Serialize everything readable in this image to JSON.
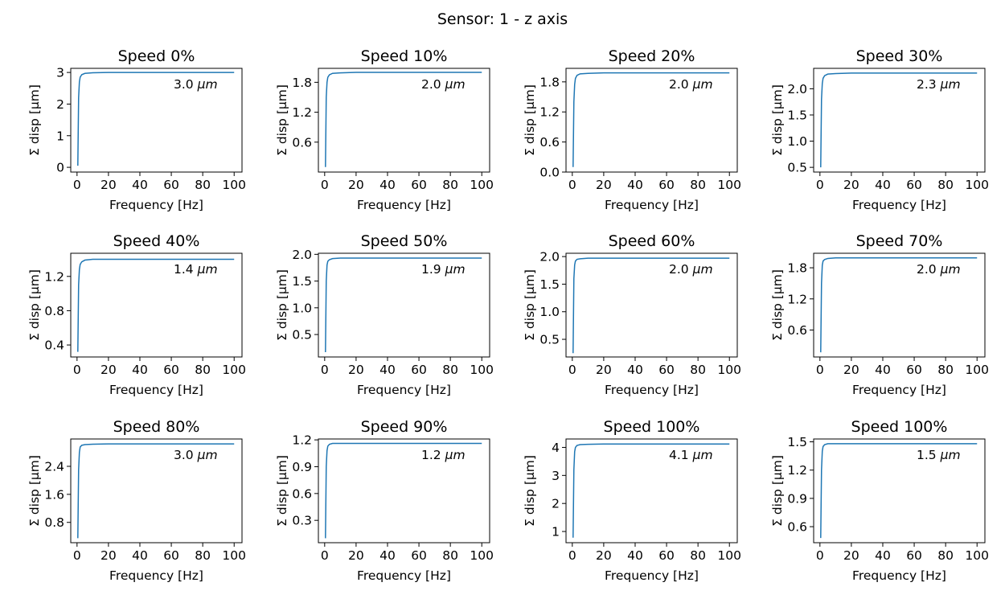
{
  "suptitle": "Sensor: 1 - z  axis",
  "colors": {
    "line": "#1f77b4",
    "axes": "#000000",
    "background": "#ffffff"
  },
  "chart_data": [
    {
      "type": "line",
      "title": "Speed 0%",
      "xlabel": "Frequency [Hz]",
      "ylabel": "Σ disp [μm]",
      "annotation": "3.0 μm",
      "annotation_value": "3.0",
      "annotation_unit": "μm",
      "xlim": [
        -4,
        105
      ],
      "ylim": [
        -0.15,
        3.13
      ],
      "xticks": [
        0,
        20,
        40,
        60,
        80,
        100
      ],
      "yticks": [
        0,
        1,
        2,
        3
      ],
      "ytick_labels": [
        "0",
        "1",
        "2",
        "3"
      ],
      "series": [
        {
          "x": [
            0.5,
            1,
            1.5,
            2,
            3,
            5,
            10,
            20,
            50,
            100
          ],
          "y": [
            0.05,
            2.2,
            2.7,
            2.85,
            2.93,
            2.97,
            2.99,
            3.0,
            3.0,
            3.0
          ]
        }
      ]
    },
    {
      "type": "line",
      "title": "Speed 10%",
      "xlabel": "Frequency [Hz]",
      "ylabel": "Σ disp [μm]",
      "annotation": "2.0 μm",
      "annotation_value": "2.0",
      "annotation_unit": "μm",
      "xlim": [
        -4,
        105
      ],
      "ylim": [
        0.0,
        2.08
      ],
      "xticks": [
        0,
        20,
        40,
        60,
        80,
        100
      ],
      "yticks": [
        0.6,
        1.2,
        1.8
      ],
      "ytick_labels": [
        "0.6",
        "1.2",
        "1.8"
      ],
      "series": [
        {
          "x": [
            0.5,
            1,
            1.5,
            2,
            3,
            5,
            10,
            20,
            50,
            100
          ],
          "y": [
            0.1,
            1.5,
            1.8,
            1.9,
            1.95,
            1.98,
            1.99,
            2.0,
            2.0,
            2.0
          ]
        }
      ]
    },
    {
      "type": "line",
      "title": "Speed 20%",
      "xlabel": "Frequency [Hz]",
      "ylabel": "Σ disp [μm]",
      "annotation": "2.0 μm",
      "annotation_value": "2.0",
      "annotation_unit": "μm",
      "xlim": [
        -4,
        105
      ],
      "ylim": [
        0.0,
        2.07
      ],
      "xticks": [
        0,
        20,
        40,
        60,
        80,
        100
      ],
      "yticks": [
        0.0,
        0.6,
        1.2,
        1.8
      ],
      "ytick_labels": [
        "0.0",
        "0.6",
        "1.2",
        "1.8"
      ],
      "series": [
        {
          "x": [
            0.5,
            1,
            1.5,
            2,
            3,
            5,
            10,
            20,
            50,
            100
          ],
          "y": [
            0.1,
            1.4,
            1.75,
            1.87,
            1.93,
            1.96,
            1.97,
            1.98,
            1.98,
            1.98
          ]
        }
      ]
    },
    {
      "type": "line",
      "title": "Speed 30%",
      "xlabel": "Frequency [Hz]",
      "ylabel": "Σ disp [μm]",
      "annotation": "2.3 μm",
      "annotation_value": "2.3",
      "annotation_unit": "μm",
      "xlim": [
        -4,
        105
      ],
      "ylim": [
        0.41,
        2.39
      ],
      "xticks": [
        0,
        20,
        40,
        60,
        80,
        100
      ],
      "yticks": [
        0.5,
        1.0,
        1.5,
        2.0
      ],
      "ytick_labels": [
        "0.5",
        "1.0",
        "1.5",
        "2.0"
      ],
      "series": [
        {
          "x": [
            0.5,
            1,
            1.5,
            2,
            3,
            5,
            10,
            20,
            50,
            100
          ],
          "y": [
            0.5,
            1.8,
            2.1,
            2.2,
            2.25,
            2.28,
            2.29,
            2.3,
            2.3,
            2.3
          ]
        }
      ]
    },
    {
      "type": "line",
      "title": "Speed 40%",
      "xlabel": "Frequency [Hz]",
      "ylabel": "Σ disp [μm]",
      "annotation": "1.4 μm",
      "annotation_value": "1.4",
      "annotation_unit": "μm",
      "xlim": [
        -4,
        105
      ],
      "ylim": [
        0.26,
        1.47
      ],
      "xticks": [
        0,
        20,
        40,
        60,
        80,
        100
      ],
      "yticks": [
        0.4,
        0.8,
        1.2
      ],
      "ytick_labels": [
        "0.4",
        "0.8",
        "1.2"
      ],
      "series": [
        {
          "x": [
            0.5,
            1,
            1.5,
            2,
            3,
            5,
            10,
            20,
            50,
            100
          ],
          "y": [
            0.32,
            1.1,
            1.28,
            1.34,
            1.37,
            1.39,
            1.4,
            1.4,
            1.4,
            1.4
          ]
        }
      ]
    },
    {
      "type": "line",
      "title": "Speed 50%",
      "xlabel": "Frequency [Hz]",
      "ylabel": "Σ disp [μm]",
      "annotation": "1.9 μm",
      "annotation_value": "1.9",
      "annotation_unit": "μm",
      "xlim": [
        -4,
        105
      ],
      "ylim": [
        0.08,
        2.02
      ],
      "xticks": [
        0,
        20,
        40,
        60,
        80,
        100
      ],
      "yticks": [
        0.5,
        1.0,
        1.5,
        2.0
      ],
      "ytick_labels": [
        "0.5",
        "1.0",
        "1.5",
        "2.0"
      ],
      "series": [
        {
          "x": [
            0.5,
            1,
            1.5,
            2,
            3,
            5,
            10,
            20,
            50,
            100
          ],
          "y": [
            0.17,
            1.5,
            1.8,
            1.87,
            1.9,
            1.92,
            1.93,
            1.93,
            1.93,
            1.93
          ]
        }
      ]
    },
    {
      "type": "line",
      "title": "Speed 60%",
      "xlabel": "Frequency [Hz]",
      "ylabel": "Σ disp [μm]",
      "annotation": "2.0 μm",
      "annotation_value": "2.0",
      "annotation_unit": "μm",
      "xlim": [
        -4,
        105
      ],
      "ylim": [
        0.18,
        2.06
      ],
      "xticks": [
        0,
        20,
        40,
        60,
        80,
        100
      ],
      "yticks": [
        0.5,
        1.0,
        1.5,
        2.0
      ],
      "ytick_labels": [
        "0.5",
        "1.0",
        "1.5",
        "2.0"
      ],
      "series": [
        {
          "x": [
            0.5,
            1,
            1.5,
            2,
            3,
            5,
            10,
            20,
            50,
            100
          ],
          "y": [
            0.25,
            1.6,
            1.85,
            1.92,
            1.95,
            1.96,
            1.97,
            1.97,
            1.97,
            1.97
          ]
        }
      ]
    },
    {
      "type": "line",
      "title": "Speed 70%",
      "xlabel": "Frequency [Hz]",
      "ylabel": "Σ disp [μm]",
      "annotation": "2.0 μm",
      "annotation_value": "2.0",
      "annotation_unit": "μm",
      "xlim": [
        -4,
        105
      ],
      "ylim": [
        0.08,
        2.08
      ],
      "xticks": [
        0,
        20,
        40,
        60,
        80,
        100
      ],
      "yticks": [
        0.6,
        1.2,
        1.8
      ],
      "ytick_labels": [
        "0.6",
        "1.2",
        "1.8"
      ],
      "series": [
        {
          "x": [
            0.5,
            1,
            1.5,
            2,
            3,
            5,
            10,
            20,
            50,
            100
          ],
          "y": [
            0.17,
            1.5,
            1.85,
            1.93,
            1.96,
            1.98,
            1.99,
            1.99,
            1.99,
            1.99
          ]
        }
      ]
    },
    {
      "type": "line",
      "title": "Speed 80%",
      "xlabel": "Frequency [Hz]",
      "ylabel": "Σ disp [μm]",
      "annotation": "3.0 μm",
      "annotation_value": "3.0",
      "annotation_unit": "μm",
      "xlim": [
        -4,
        105
      ],
      "ylim": [
        0.22,
        3.18
      ],
      "xticks": [
        0,
        20,
        40,
        60,
        80,
        100
      ],
      "yticks": [
        0.8,
        1.6,
        2.4
      ],
      "ytick_labels": [
        "0.8",
        "1.6",
        "2.4"
      ],
      "series": [
        {
          "x": [
            0.5,
            1,
            1.5,
            2,
            3,
            5,
            10,
            20,
            50,
            100
          ],
          "y": [
            0.35,
            2.3,
            2.8,
            2.95,
            3.0,
            3.02,
            3.03,
            3.04,
            3.04,
            3.04
          ]
        }
      ]
    },
    {
      "type": "line",
      "title": "Speed 90%",
      "xlabel": "Frequency [Hz]",
      "ylabel": "Σ disp [μm]",
      "annotation": "1.2 μm",
      "annotation_value": "1.2",
      "annotation_unit": "μm",
      "xlim": [
        -4,
        105
      ],
      "ylim": [
        0.05,
        1.21
      ],
      "xticks": [
        0,
        20,
        40,
        60,
        80,
        100
      ],
      "yticks": [
        0.3,
        0.6,
        0.9,
        1.2
      ],
      "ytick_labels": [
        "0.3",
        "0.6",
        "0.9",
        "1.2"
      ],
      "series": [
        {
          "x": [
            0.5,
            1,
            1.5,
            2,
            3,
            5,
            10,
            20,
            50,
            100
          ],
          "y": [
            0.1,
            0.9,
            1.08,
            1.13,
            1.15,
            1.16,
            1.16,
            1.16,
            1.16,
            1.16
          ]
        }
      ]
    },
    {
      "type": "line",
      "title": "Speed 100%",
      "xlabel": "Frequency [Hz]",
      "ylabel": "Σ disp [μm]",
      "annotation": "4.1 μm",
      "annotation_value": "4.1",
      "annotation_unit": "μm",
      "xlim": [
        -4,
        105
      ],
      "ylim": [
        0.6,
        4.3
      ],
      "xticks": [
        0,
        20,
        40,
        60,
        80,
        100
      ],
      "yticks": [
        1,
        2,
        3,
        4
      ],
      "ytick_labels": [
        "1",
        "2",
        "3",
        "4"
      ],
      "series": [
        {
          "x": [
            0.5,
            1,
            1.5,
            2,
            3,
            5,
            10,
            20,
            50,
            100
          ],
          "y": [
            0.78,
            3.2,
            3.85,
            4.0,
            4.07,
            4.1,
            4.11,
            4.12,
            4.12,
            4.12
          ]
        }
      ]
    },
    {
      "type": "line",
      "title": "Speed 100%",
      "xlabel": "Frequency [Hz]",
      "ylabel": "Σ disp [μm]",
      "annotation": "1.5 μm",
      "annotation_value": "1.5",
      "annotation_unit": "μm",
      "xlim": [
        -4,
        105
      ],
      "ylim": [
        0.43,
        1.53
      ],
      "xticks": [
        0,
        20,
        40,
        60,
        80,
        100
      ],
      "yticks": [
        0.6,
        0.9,
        1.2,
        1.5
      ],
      "ytick_labels": [
        "0.6",
        "0.9",
        "1.2",
        "1.5"
      ],
      "series": [
        {
          "x": [
            0.5,
            1,
            1.5,
            2,
            3,
            5,
            10,
            20,
            50,
            100
          ],
          "y": [
            0.48,
            1.2,
            1.4,
            1.45,
            1.47,
            1.48,
            1.48,
            1.48,
            1.48,
            1.48
          ]
        }
      ]
    }
  ]
}
